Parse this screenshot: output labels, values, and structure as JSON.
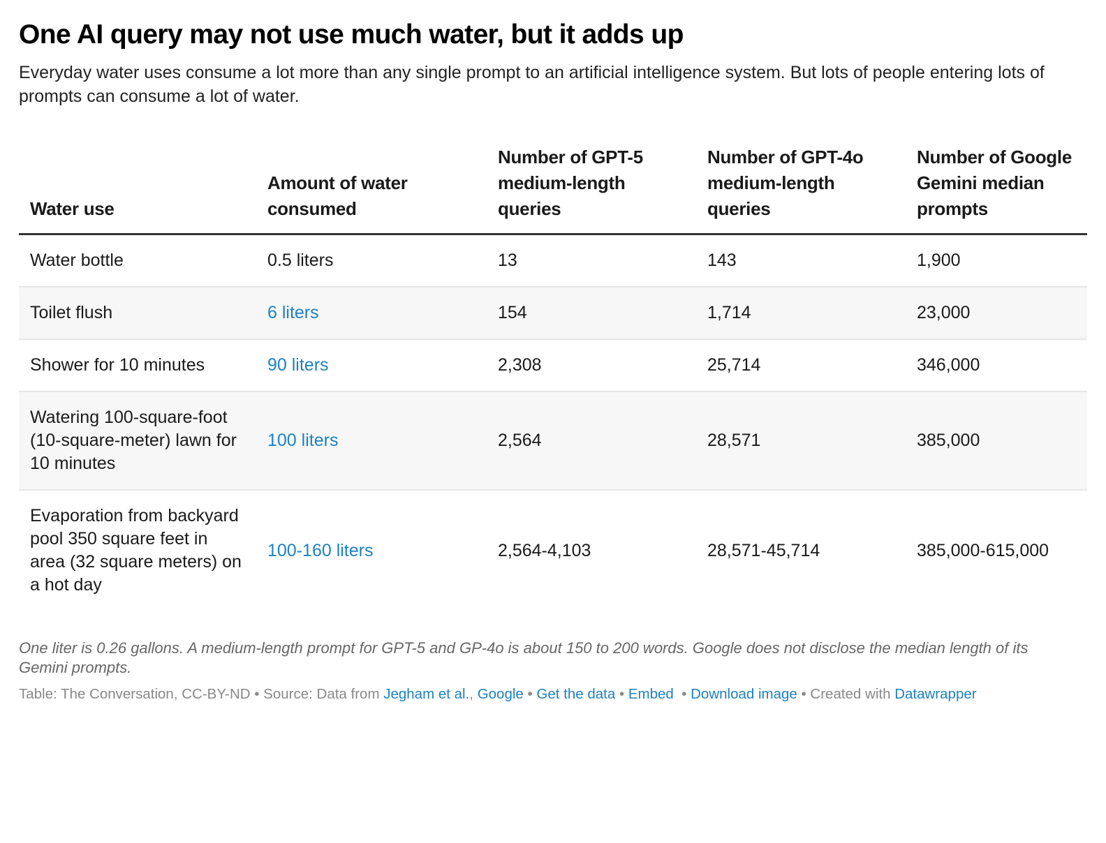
{
  "header": {
    "title": "One AI query may not use much water, but it adds up",
    "subtitle": "Everyday water uses consume a lot more than any single prompt to an artificial intelligence system. But lots of people entering lots of prompts can consume a lot of water."
  },
  "table": {
    "columns": [
      "Water use",
      "Amount of water consumed",
      "Number of GPT-5 medium-length queries",
      "Number of GPT-4o medium-length queries",
      "Number of Google Gemini median prompts"
    ],
    "rows": [
      {
        "water_use": "Water bottle",
        "amount": "0.5 liters",
        "amount_is_link": false,
        "gpt5": "13",
        "gpt4o": "143",
        "gemini": "1,900"
      },
      {
        "water_use": "Toilet flush",
        "amount": "6 liters",
        "amount_is_link": true,
        "gpt5": "154",
        "gpt4o": "1,714",
        "gemini": "23,000"
      },
      {
        "water_use": "Shower for 10 minutes",
        "amount": "90 liters",
        "amount_is_link": true,
        "gpt5": "2,308",
        "gpt4o": "25,714",
        "gemini": "346,000"
      },
      {
        "water_use": "Watering 100-square-foot (10-square-meter) lawn for 10 minutes",
        "amount": "100 liters",
        "amount_is_link": true,
        "gpt5": "2,564",
        "gpt4o": "28,571",
        "gemini": "385,000"
      },
      {
        "water_use": "Evaporation from backyard pool 350 square feet in area (32 square meters) on a hot day",
        "amount": "100-160 liters",
        "amount_is_link": true,
        "gpt5": "2,564-4,103",
        "gpt4o": "28,571-45,714",
        "gemini": "385,000-615,000"
      }
    ]
  },
  "notes": "One liter is 0.26 gallons. A medium-length prompt for GPT-5 and GP-4o is about 150 to 200 words. Google does not disclose the median length of its Gemini prompts.",
  "footer": {
    "table_credit": "Table: The Conversation, CC-BY-ND",
    "separator": "•",
    "source_prefix": "Source: Data from",
    "source_link_1": "Jegham et al.",
    "source_comma": ",",
    "source_link_2": "Google",
    "get_data": "Get the data",
    "embed": "Embed",
    "download_image": "Download image",
    "created_with": "Created with",
    "datawrapper": "Datawrapper"
  },
  "colors": {
    "link": "#1d81c3",
    "stripe": "#f7f7f7",
    "header_rule": "#333333",
    "muted_text": "#888888"
  }
}
